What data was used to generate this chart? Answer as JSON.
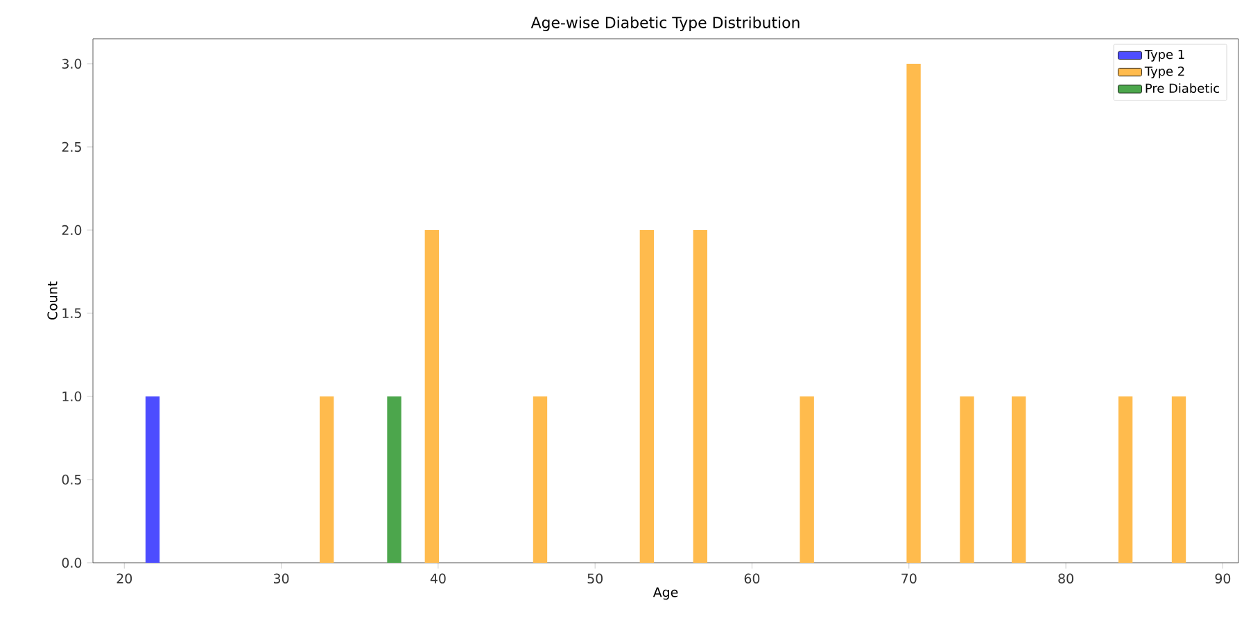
{
  "chart_data": {
    "type": "bar",
    "title": "Age-wise Diabetic Type Distribution",
    "xlabel": "Age",
    "ylabel": "Count",
    "xlim": [
      18,
      91
    ],
    "ylim": [
      0,
      3.15
    ],
    "xticks": [
      {
        "value": 20,
        "label": "20"
      },
      {
        "value": 30,
        "label": "30"
      },
      {
        "value": 40,
        "label": "40"
      },
      {
        "value": 50,
        "label": "50"
      },
      {
        "value": 60,
        "label": "60"
      },
      {
        "value": 70,
        "label": "70"
      },
      {
        "value": 80,
        "label": "80"
      },
      {
        "value": 90,
        "label": "90"
      }
    ],
    "yticks": [
      {
        "value": 0,
        "label": "0.0"
      },
      {
        "value": 0.5,
        "label": "0.5"
      },
      {
        "value": 1,
        "label": "1.0"
      },
      {
        "value": 1.5,
        "label": "1.5"
      },
      {
        "value": 2,
        "label": "2.0"
      },
      {
        "value": 2.5,
        "label": "2.5"
      },
      {
        "value": 3,
        "label": "3.0"
      }
    ],
    "grid": false,
    "legend": "top right",
    "series": [
      {
        "name": "Type 1",
        "color": "#4d4dff",
        "x": [
          21.8
        ],
        "values": [
          1
        ]
      },
      {
        "name": "Type 2",
        "color": "#ffbb4d",
        "x": [
          32.9,
          39.6,
          46.5,
          53.3,
          56.7,
          63.5,
          70.3,
          73.7,
          77.0,
          83.8,
          87.2
        ],
        "values": [
          1,
          2,
          1,
          2,
          2,
          1,
          3,
          1,
          1,
          1,
          1
        ]
      },
      {
        "name": "Pre Diabetic",
        "color": "#4ca64c",
        "x": [
          37.2
        ],
        "values": [
          1
        ]
      }
    ]
  }
}
